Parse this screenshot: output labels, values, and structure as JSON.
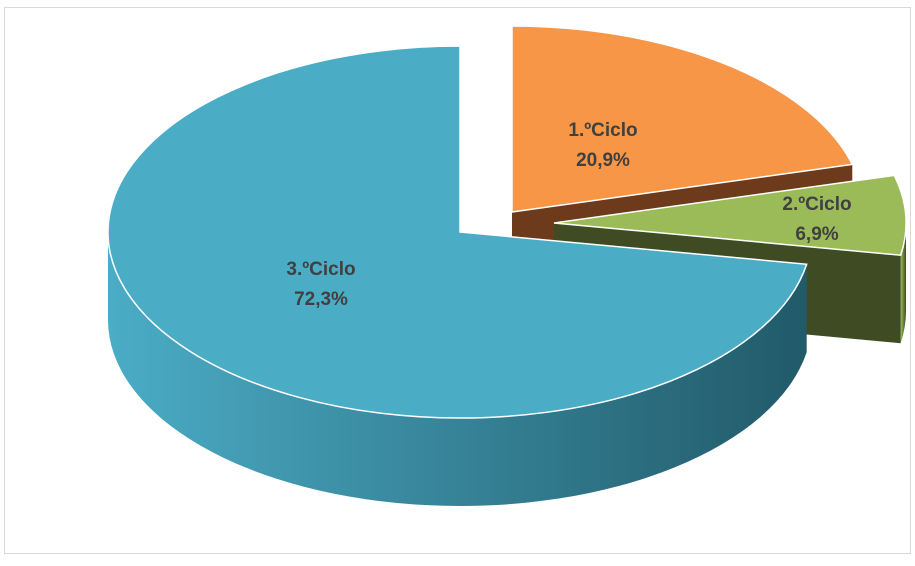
{
  "chart_data": {
    "type": "pie",
    "title": "",
    "categories": [
      "1.ºCiclo",
      "2.ºCiclo",
      "3.ºCiclo"
    ],
    "values": [
      20.9,
      6.9,
      72.3
    ],
    "percent_labels": [
      "20,9%",
      "6,9%",
      "72,3%"
    ],
    "colors": [
      "#F79646",
      "#9BBB59",
      "#4BACC6"
    ],
    "side_colors": [
      "#6E3A1C",
      "#3F4C23",
      "#215A69"
    ],
    "exploded": [
      "1.ºCiclo",
      "2.ºCiclo"
    ],
    "style": "3d",
    "legend": "none"
  }
}
